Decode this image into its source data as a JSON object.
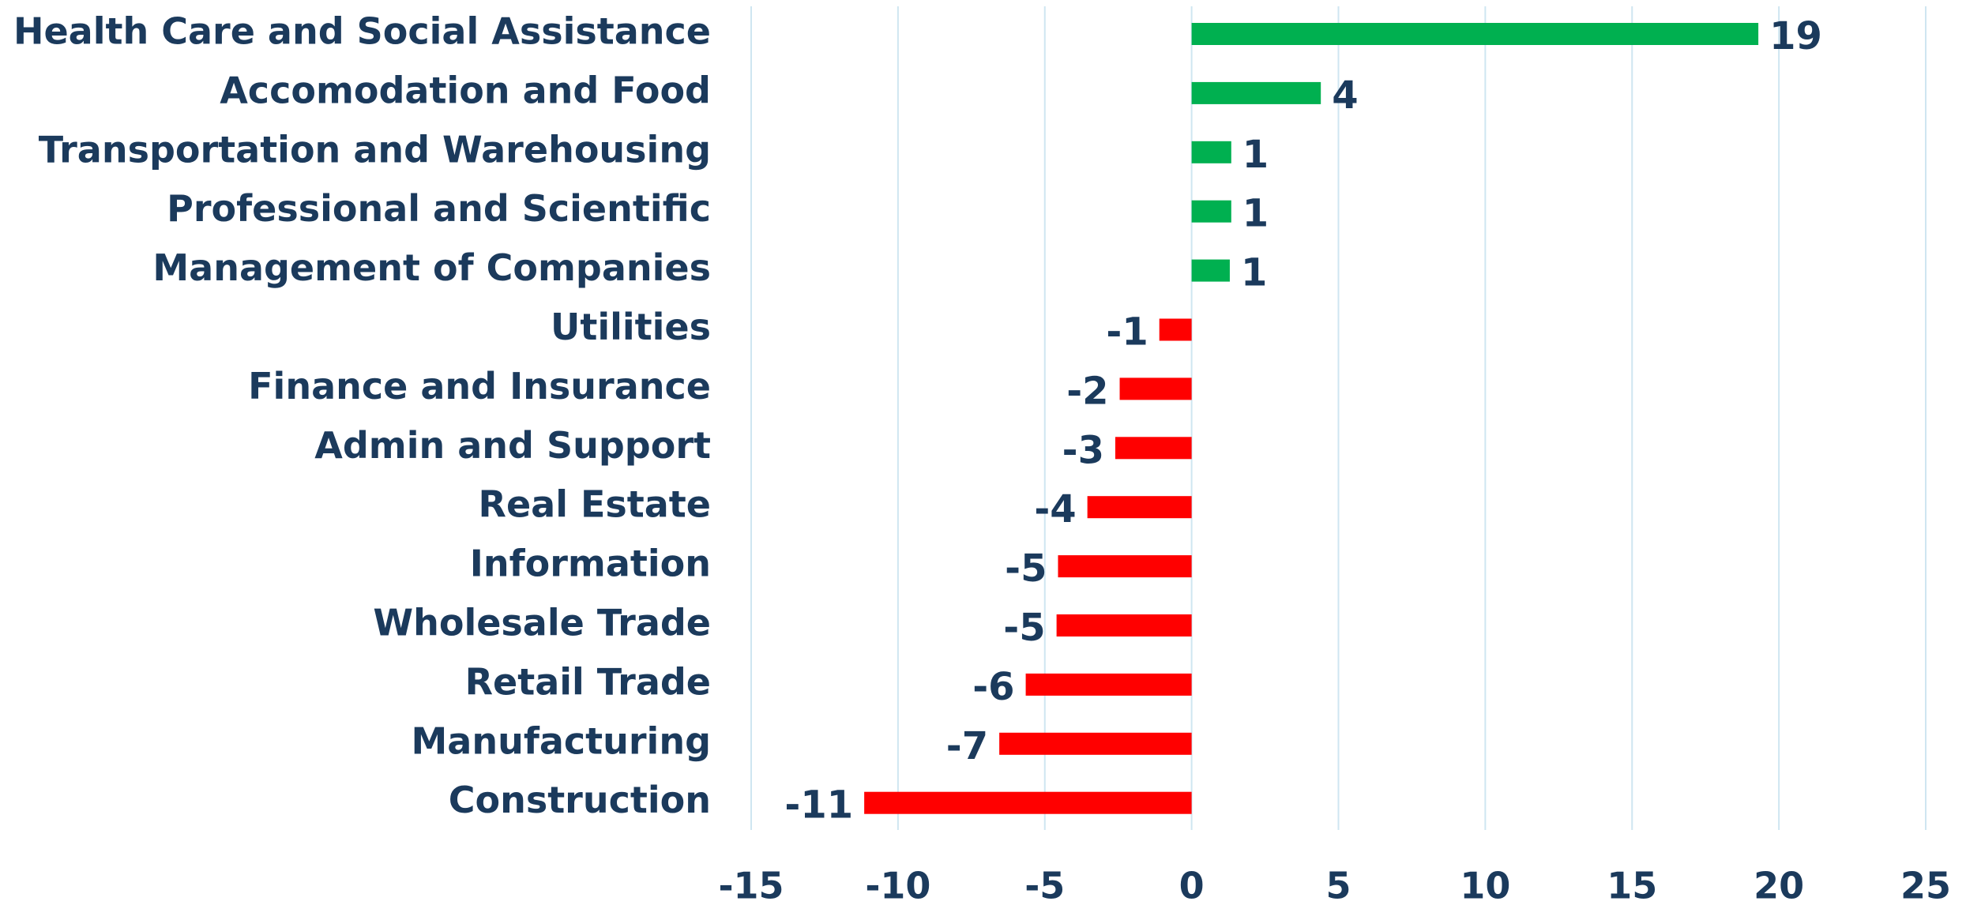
{
  "chart_data": {
    "type": "hbar",
    "categories": [
      "Health Care and Social Assistance",
      "Accomodation and Food",
      "Transportation and Warehousing",
      "Professional and Scientific",
      "Management of Companies",
      "Utilities",
      "Finance and Insurance",
      "Admin and Support",
      "Real Estate",
      "Information",
      "Wholesale Trade",
      "Retail Trade",
      "Manufacturing",
      "Construction"
    ],
    "values": [
      19.3,
      4.4,
      1.35,
      1.35,
      1.3,
      -1.1,
      -2.45,
      -2.6,
      -3.55,
      -4.55,
      -4.6,
      -5.65,
      -6.55,
      -11.15
    ],
    "value_labels": [
      "19",
      "4",
      "1",
      "1",
      "1",
      "-1",
      "-2",
      "-3",
      "-4",
      "-5",
      "-5",
      "-6",
      "-7",
      "-11"
    ],
    "colors": [
      "#00b050",
      "#00b050",
      "#00b050",
      "#00b050",
      "#00b050",
      "#ff0000",
      "#ff0000",
      "#ff0000",
      "#ff0000",
      "#ff0000",
      "#ff0000",
      "#ff0000",
      "#ff0000",
      "#ff0000"
    ],
    "xlim": [
      -15,
      25
    ],
    "xticks": [
      -15,
      -10,
      -5,
      0,
      5,
      10,
      15,
      20,
      25
    ],
    "grid": true
  }
}
